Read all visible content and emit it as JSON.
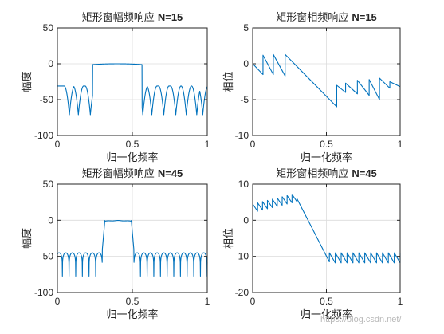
{
  "chart_data": [
    {
      "type": "line",
      "title": "矩形窗幅频响应 N=15",
      "title_main": "矩形窗幅频响应",
      "title_sub": "N=15",
      "xlabel": "归一化频率",
      "ylabel": "幅度",
      "xlim": [
        0,
        1
      ],
      "ylim": [
        -100,
        50
      ],
      "xticks": [
        "0",
        "0.5",
        "1"
      ],
      "yticks": [
        "50",
        "0",
        "-50",
        "-100"
      ],
      "grid": true,
      "series": [
        {
          "name": "",
          "color": "#0072bd",
          "N": 15,
          "kind": "magnitude_db",
          "floor": -31,
          "nulls": [
            0.08,
            0.14,
            0.22,
            0.57,
            0.63,
            0.71,
            0.79,
            0.86,
            0.93,
            0.97
          ]
        }
      ]
    },
    {
      "type": "line",
      "title": "矩形窗相频响应 N=15",
      "title_main": "矩形窗相频响应",
      "title_sub": "N=15",
      "xlabel": "归一化频率",
      "ylabel": "相位",
      "xlim": [
        0,
        1
      ],
      "ylim": [
        -10,
        5
      ],
      "xticks": [
        "0",
        "0.5",
        "1"
      ],
      "yticks": [
        "5",
        "0",
        "-5",
        "-10"
      ],
      "grid": true,
      "series": [
        {
          "name": "",
          "color": "#0072bd",
          "x": [
            0,
            0.07,
            0.07,
            0.14,
            0.14,
            0.22,
            0.22,
            0.57,
            0.57,
            0.63,
            0.63,
            0.71,
            0.71,
            0.79,
            0.79,
            0.86,
            0.86,
            0.93,
            0.93,
            1.0
          ],
          "y": [
            0,
            -1.5,
            1.2,
            -1.5,
            1.3,
            -1.7,
            1.3,
            -6.0,
            -3.0,
            -4.0,
            -2.7,
            -4.2,
            -2.3,
            -4.4,
            -2.2,
            -5.0,
            -2.0,
            -3.4,
            -2.5,
            -3.2
          ]
        }
      ]
    },
    {
      "type": "line",
      "title": "矩形窗幅频响应 N=45",
      "title_main": "矩形窗幅频响应",
      "title_sub": "N=45",
      "xlabel": "归一化频率",
      "ylabel": "幅度",
      "xlim": [
        0,
        1
      ],
      "ylim": [
        -100,
        50
      ],
      "xticks": [
        "0",
        "0.5",
        "1"
      ],
      "yticks": [
        "50",
        "0",
        "-50",
        "-100"
      ],
      "grid": true,
      "series": [
        {
          "name": "",
          "color": "#0072bd",
          "N": 45,
          "kind": "magnitude_db",
          "floor": -45,
          "passband": [
            0.3,
            0.51
          ]
        }
      ]
    },
    {
      "type": "line",
      "title": "矩形窗相频响应 N=45",
      "title_main": "矩形窗相频响应",
      "title_sub": "N=45",
      "xlabel": "归一化频率",
      "ylabel": "相位",
      "xlim": [
        0,
        1
      ],
      "ylim": [
        -20,
        10
      ],
      "xticks": [
        "0",
        "0.5",
        "1"
      ],
      "yticks": [
        "10",
        "0",
        "-10",
        "-20"
      ],
      "grid": true,
      "series": [
        {
          "name": "",
          "color": "#0072bd",
          "N": 45,
          "kind": "phase_wrapped",
          "start": [
            0.0,
            3.0
          ],
          "ramp_top": [
            0.3,
            6.0
          ],
          "ramp_bottom": [
            0.52,
            -11.5
          ],
          "end": [
            1.0,
            -9.0
          ]
        }
      ]
    }
  ],
  "watermark": "https://blog.csdn.net/"
}
